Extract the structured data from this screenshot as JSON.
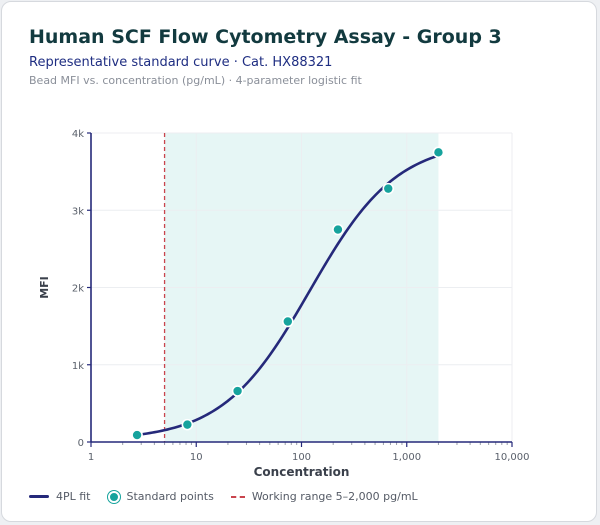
{
  "header": {
    "title": "Human SCF Flow Cytometry Assay - Group 3",
    "subtitle": "Representative standard curve · Cat. HX88321",
    "caption": "Bead MFI vs. concentration (pg/mL) · 4-parameter logistic fit"
  },
  "legend": {
    "fit_label": "4PL fit",
    "points_label": "Standard points",
    "range_label": "Working range 5–2,000 pg/mL"
  },
  "colors": {
    "curve": "#25297a",
    "points": "#16a39d",
    "range_line": "#c9444d",
    "range_fill": "#e6f6f5",
    "grid": "#eceef1",
    "axis": "#25297a"
  },
  "chart_data": {
    "type": "scatter",
    "x_scale": "log",
    "xlim": [
      1,
      10000
    ],
    "ylim": [
      0,
      4000
    ],
    "xlabel": "Concentration",
    "ylabel": "MFI",
    "x_ticks": [
      1,
      10,
      100,
      1000,
      10000
    ],
    "x_tick_labels": [
      "1",
      "10",
      "100",
      "1,000",
      "10,000"
    ],
    "y_ticks": [
      0,
      1000,
      2000,
      3000,
      4000
    ],
    "y_tick_labels": [
      "0",
      "1k",
      "2k",
      "3k",
      "4k"
    ],
    "grid": true,
    "legend_position": "bottom",
    "working_range": {
      "lower": 5,
      "upper": 2000
    },
    "series": [
      {
        "name": "Standard points",
        "points": [
          {
            "x": 2.74,
            "y": 90
          },
          {
            "x": 8.23,
            "y": 225
          },
          {
            "x": 24.7,
            "y": 660
          },
          {
            "x": 74.1,
            "y": 1560
          },
          {
            "x": 222,
            "y": 2750
          },
          {
            "x": 667,
            "y": 3280
          },
          {
            "x": 2000,
            "y": 3750
          }
        ]
      },
      {
        "name": "4PL fit",
        "fit": {
          "bottom": 20,
          "top": 3900,
          "ec50": 120,
          "hill": 1.05
        },
        "x_range": [
          2.74,
          2000
        ]
      }
    ]
  }
}
